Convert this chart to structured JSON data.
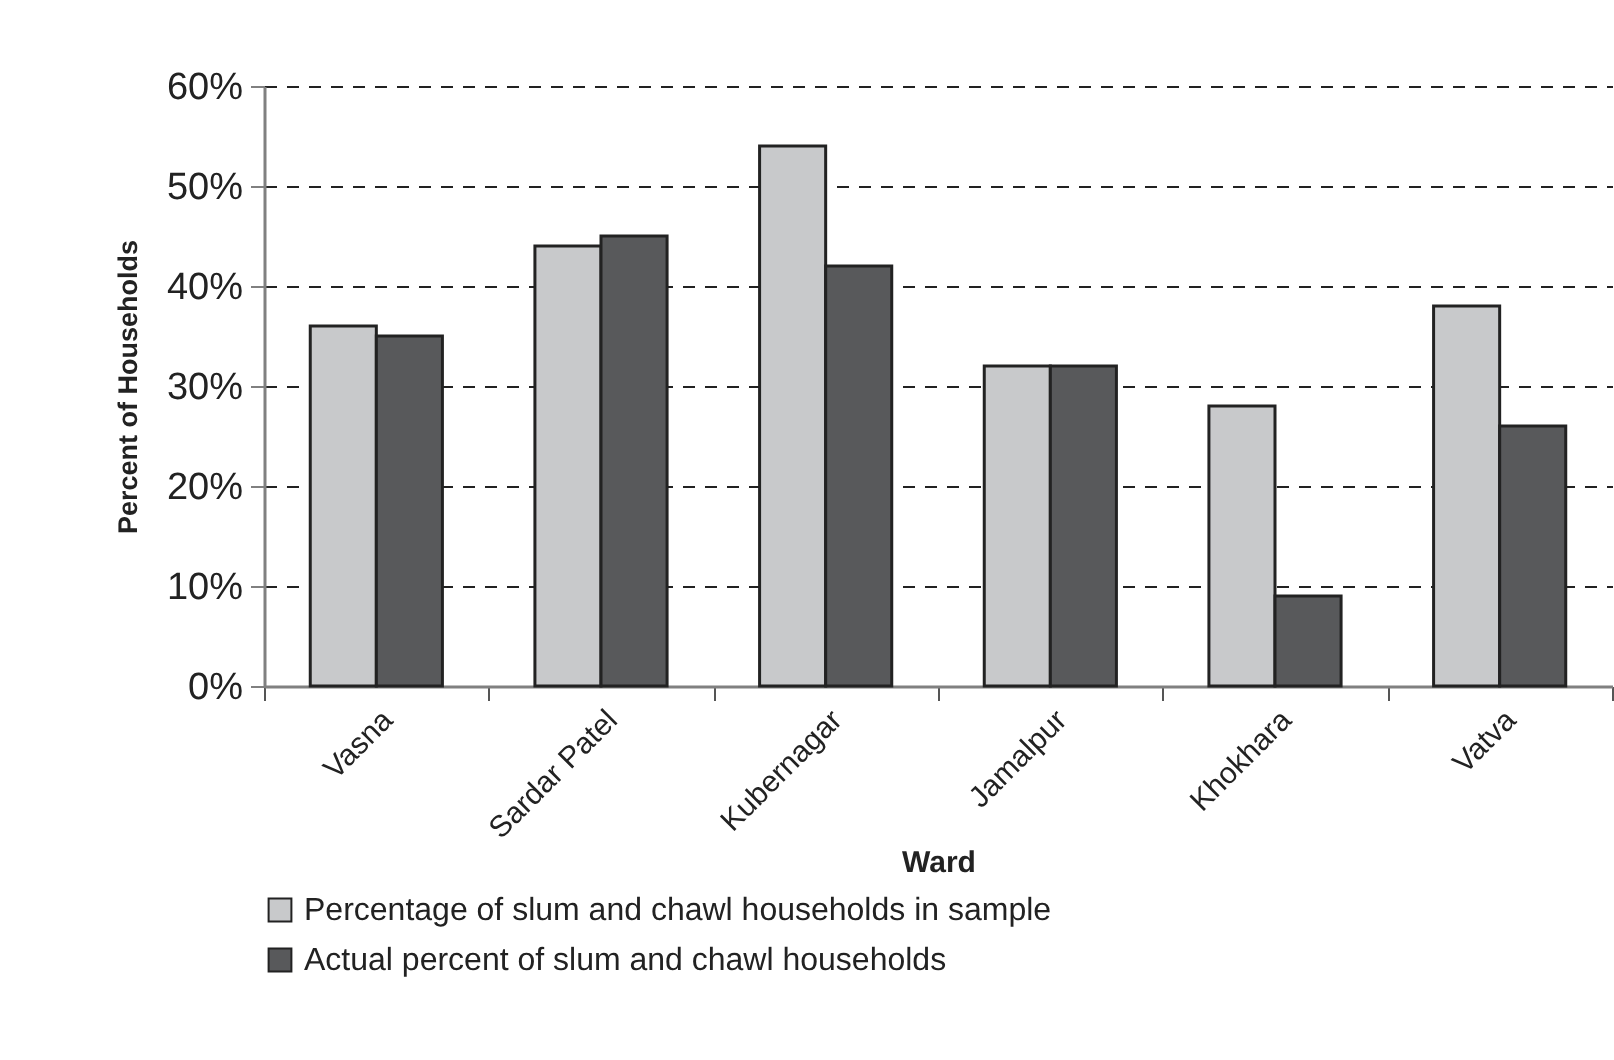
{
  "chart_data": {
    "type": "bar",
    "xlabel": "Ward",
    "ylabel": "Percent of Households",
    "categories": [
      "Vasna",
      "Sardar Patel",
      "Kubernagar",
      "Jamalpur",
      "Khokhara",
      "Vatva"
    ],
    "series": [
      {
        "name": "Percentage of slum and chawl households in sample",
        "color": "#c8c9cb",
        "values": [
          36,
          44,
          54,
          32,
          28,
          38
        ]
      },
      {
        "name": "Actual percent of slum and chawl households",
        "color": "#58595b",
        "values": [
          35,
          45,
          42,
          32,
          9,
          26
        ]
      }
    ],
    "ylim": [
      0,
      60
    ],
    "yticks": [
      {
        "value": 0,
        "label": "0%"
      },
      {
        "value": 10,
        "label": "10%"
      },
      {
        "value": 20,
        "label": "20%"
      },
      {
        "value": 30,
        "label": "30%"
      },
      {
        "value": 40,
        "label": "40%"
      },
      {
        "value": 50,
        "label": "50%"
      },
      {
        "value": 60,
        "label": "60%"
      }
    ],
    "grid": "y",
    "legend": "bottom"
  }
}
